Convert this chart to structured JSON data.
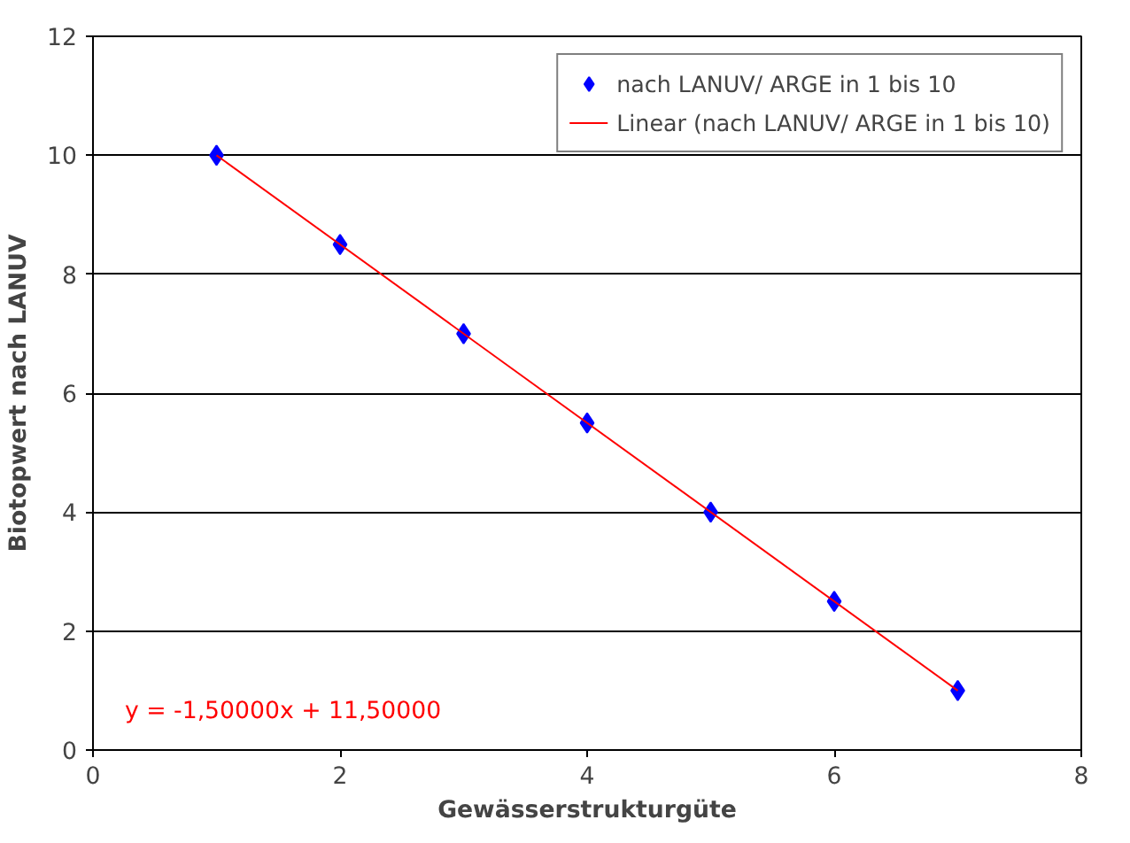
{
  "chart_data": {
    "type": "scatter",
    "xlabel": "Gewässerstrukturgüte",
    "ylabel": "Biotopwert nach LANUV",
    "x": [
      1,
      2,
      3,
      4,
      5,
      6,
      7
    ],
    "series": [
      {
        "name": "nach LANUV/ ARGE in 1 bis 10",
        "color": "#0000ff",
        "marker": "diamond",
        "values": [
          10,
          8.5,
          7,
          5.5,
          4,
          2.5,
          1
        ]
      },
      {
        "name": "Linear (nach LANUV/ ARGE in 1 bis 10)",
        "type": "line",
        "color": "#ff0000",
        "x": [
          1,
          7
        ],
        "values": [
          10,
          1
        ]
      }
    ],
    "xlim": [
      0,
      8
    ],
    "ylim": [
      0,
      12
    ],
    "xticks": [
      0,
      2,
      4,
      6,
      8
    ],
    "yticks": [
      0,
      2,
      4,
      6,
      8,
      10,
      12
    ],
    "grid": "y",
    "legend": "top right",
    "annotations": [
      "y = -1,50000x + 11,50000"
    ]
  }
}
